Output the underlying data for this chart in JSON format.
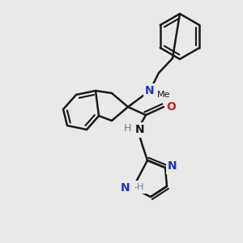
{
  "background_color": "#e9e9e9",
  "bond_color": "#1a1a1a",
  "bond_width": 1.8,
  "figsize": [
    3.0,
    3.0
  ],
  "dpi": 100,
  "xlim": [
    0,
    300
  ],
  "ylim": [
    0,
    300
  ]
}
